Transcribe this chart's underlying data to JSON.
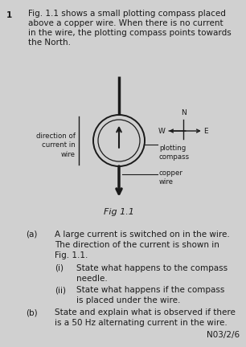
{
  "bg_color": "#d0d0d0",
  "page_num": "1",
  "intro_text_1": "Fig. 1.1 shows a small plotting compass placed",
  "intro_text_2": "above a copper wire. When there is no current",
  "intro_text_3": "in the wire, the plotting compass points towards",
  "intro_text_4": "the North.",
  "fig_label": "Fig 1.1",
  "wire_label": "direction of\ncurrent in\nwire",
  "plotting_compass_label": "plotting\ncompass",
  "copper_wire_label": "copper\nwire",
  "north_label": "N",
  "west_label": "W",
  "east_label": "E",
  "ref_code": "N03/2/6",
  "text_color": "#1a1a1a",
  "line_color": "#1a1a1a",
  "font_size_body": 7.5,
  "font_size_small": 6.5,
  "font_size_label": 6.2
}
